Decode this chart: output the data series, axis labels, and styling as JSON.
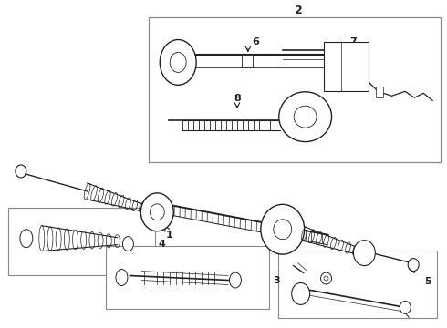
{
  "bg_color": "#ffffff",
  "line_color": "#222222",
  "fig_w": 4.9,
  "fig_h": 3.6,
  "dpi": 100
}
